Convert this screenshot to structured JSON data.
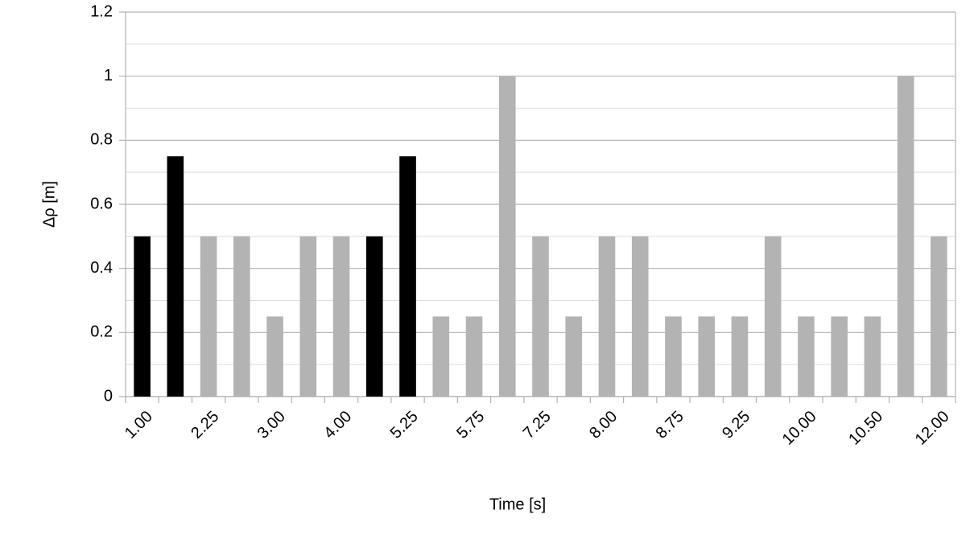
{
  "chart_data": {
    "type": "bar",
    "x_label": "Time [s]",
    "y_label": "Δρ [m]",
    "categories": [
      "1.00",
      null,
      "2.25",
      null,
      "3.00",
      null,
      "4.00",
      null,
      "5.25",
      null,
      "5.75",
      null,
      "7.25",
      null,
      "8.00",
      null,
      "8.75",
      null,
      "9.25",
      null,
      "10.00",
      null,
      "10.50",
      null,
      "12.00"
    ],
    "values": [
      0.5,
      0.75,
      0.5,
      0.5,
      0.25,
      0.5,
      0.5,
      0.5,
      0.75,
      0.25,
      0.25,
      1,
      0.5,
      0.25,
      0.5,
      0.5,
      0.25,
      0.25,
      0.25,
      0.5,
      0.25,
      0.25,
      0.25,
      1,
      0.5
    ],
    "colors": [
      "#000000",
      "#000000",
      "#b3b3b3",
      "#b3b3b3",
      "#b3b3b3",
      "#b3b3b3",
      "#b3b3b3",
      "#000000",
      "#000000",
      "#b3b3b3",
      "#b3b3b3",
      "#b3b3b3",
      "#b3b3b3",
      "#b3b3b3",
      "#b3b3b3",
      "#b3b3b3",
      "#b3b3b3",
      "#b3b3b3",
      "#b3b3b3",
      "#b3b3b3",
      "#b3b3b3",
      "#b3b3b3",
      "#b3b3b3",
      "#b3b3b3",
      "#b3b3b3"
    ],
    "ylim": [
      0,
      1.2
    ],
    "yticks": [
      0,
      0.2,
      0.4,
      0.6,
      0.8,
      1,
      1.2
    ],
    "minor_yticks": [
      0.1,
      0.3,
      0.5,
      0.7,
      0.9,
      1.1
    ],
    "grid": true
  }
}
